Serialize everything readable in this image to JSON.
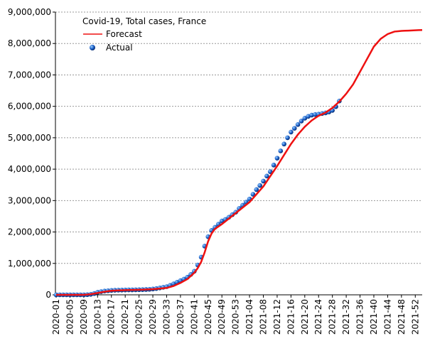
{
  "chart_data": {
    "type": "line",
    "title": "Covid-19, Total cases, France",
    "legend": "upper left",
    "grid": true,
    "categories": [
      "2020-01",
      null,
      null,
      null,
      "2020-05",
      null,
      null,
      null,
      "2020-09",
      null,
      null,
      null,
      "2020-13",
      null,
      null,
      null,
      "2020-17",
      null,
      null,
      null,
      "2020-21",
      null,
      null,
      null,
      "2020-25",
      null,
      null,
      null,
      "2020-29",
      null,
      null,
      null,
      "2020-33",
      null,
      null,
      null,
      "2020-37",
      null,
      null,
      null,
      "2020-41",
      null,
      null,
      null,
      "2020-45",
      null,
      null,
      null,
      "2020-49",
      null,
      null,
      null,
      "2020-53",
      null,
      null,
      null,
      "2021-04",
      null,
      null,
      null,
      "2021-08",
      null,
      null,
      null,
      "2021-12",
      null,
      null,
      null,
      "2021-16",
      null,
      null,
      null,
      "2021-20",
      null,
      null,
      null,
      "2021-24",
      null,
      null,
      null,
      "2021-28",
      null,
      null,
      null,
      "2021-32",
      null,
      null,
      null,
      "2021-36",
      null,
      null,
      null,
      "2021-40",
      null,
      null,
      null,
      "2021-44",
      null,
      null,
      null,
      "2021-48",
      null,
      null,
      null,
      "2021-52",
      null,
      null
    ],
    "series": [
      {
        "name": "Forecast",
        "type": "line",
        "color": "#ee1111",
        "values": [
          0,
          0,
          0,
          0,
          0,
          0,
          0,
          0,
          0,
          10000,
          20000,
          40000,
          60000,
          80000,
          100000,
          115000,
          130000,
          135000,
          140000,
          145000,
          150000,
          152500,
          155000,
          157500,
          160000,
          165000,
          170000,
          175000,
          180000,
          190000,
          200000,
          210000,
          220000,
          250000,
          280000,
          330000,
          380000,
          440000,
          500000,
          600000,
          700000,
          850000,
          1050000,
          1350000,
          1700000,
          1950000,
          2100000,
          2175000,
          2250000,
          2337500,
          2425000,
          2512500,
          2600000,
          2687500,
          2775000,
          2862500,
          2950000,
          3075000,
          3200000,
          3325000,
          3450000,
          3612500,
          3775000,
          3937500,
          4100000,
          4275000,
          4450000,
          4625000,
          4800000,
          4950000,
          5100000,
          5225000,
          5350000,
          5450000,
          5550000,
          5625000,
          5700000,
          5750000,
          5800000,
          5875000,
          5950000,
          6050000,
          6150000,
          6275000,
          6400000,
          6550000,
          6700000,
          6900000,
          7100000,
          7300000,
          7500000,
          7700000,
          7900000,
          8025000,
          8150000,
          8225000,
          8300000,
          8340000,
          8380000,
          8390000,
          8400000,
          8405000,
          8410000,
          8415000,
          8420000,
          8425000,
          8430000
        ]
      },
      {
        "name": "Actual",
        "type": "scatter",
        "color": "#1a5fc8",
        "values": [
          0,
          0,
          0,
          0,
          0,
          0,
          0,
          0,
          0,
          5000,
          15000,
          40000,
          80000,
          100000,
          120000,
          130000,
          140000,
          145000,
          150000,
          152000,
          155000,
          157000,
          158000,
          160000,
          162000,
          165000,
          170000,
          175000,
          185000,
          200000,
          220000,
          240000,
          260000,
          300000,
          350000,
          400000,
          450000,
          500000,
          560000,
          650000,
          750000,
          950000,
          1200000,
          1550000,
          1850000,
          2050000,
          2150000,
          2250000,
          2350000,
          2400000,
          2470000,
          2550000,
          2630000,
          2750000,
          2850000,
          2950000,
          3050000,
          3200000,
          3350000,
          3480000,
          3620000,
          3780000,
          3920000,
          4130000,
          4350000,
          4580000,
          4800000,
          5000000,
          5180000,
          5300000,
          5420000,
          5530000,
          5620000,
          5680000,
          5720000,
          5740000,
          5750000,
          5770000,
          5790000,
          5820000,
          5870000,
          5990000,
          6170000,
          null,
          null,
          null,
          null,
          null,
          null,
          null,
          null,
          null,
          null,
          null,
          null,
          null,
          null,
          null,
          null,
          null,
          null,
          null,
          null,
          null,
          null,
          null,
          null
        ]
      }
    ],
    "ylim": [
      0,
      9000000
    ],
    "yticks": [
      0,
      {
        "value": 1000000,
        "label": "1,000,000"
      },
      {
        "value": 2000000,
        "label": "2,000,000"
      },
      {
        "value": 3000000,
        "label": "3,000,000"
      },
      {
        "value": 4000000,
        "label": "4,000,000"
      },
      {
        "value": 5000000,
        "label": "5,000,000"
      },
      {
        "value": 6000000,
        "label": "6,000,000"
      },
      {
        "value": 7000000,
        "label": "7,000,000"
      },
      {
        "value": 8000000,
        "label": "8,000,000"
      },
      {
        "value": 9000000,
        "label": "9,000,000"
      }
    ]
  }
}
